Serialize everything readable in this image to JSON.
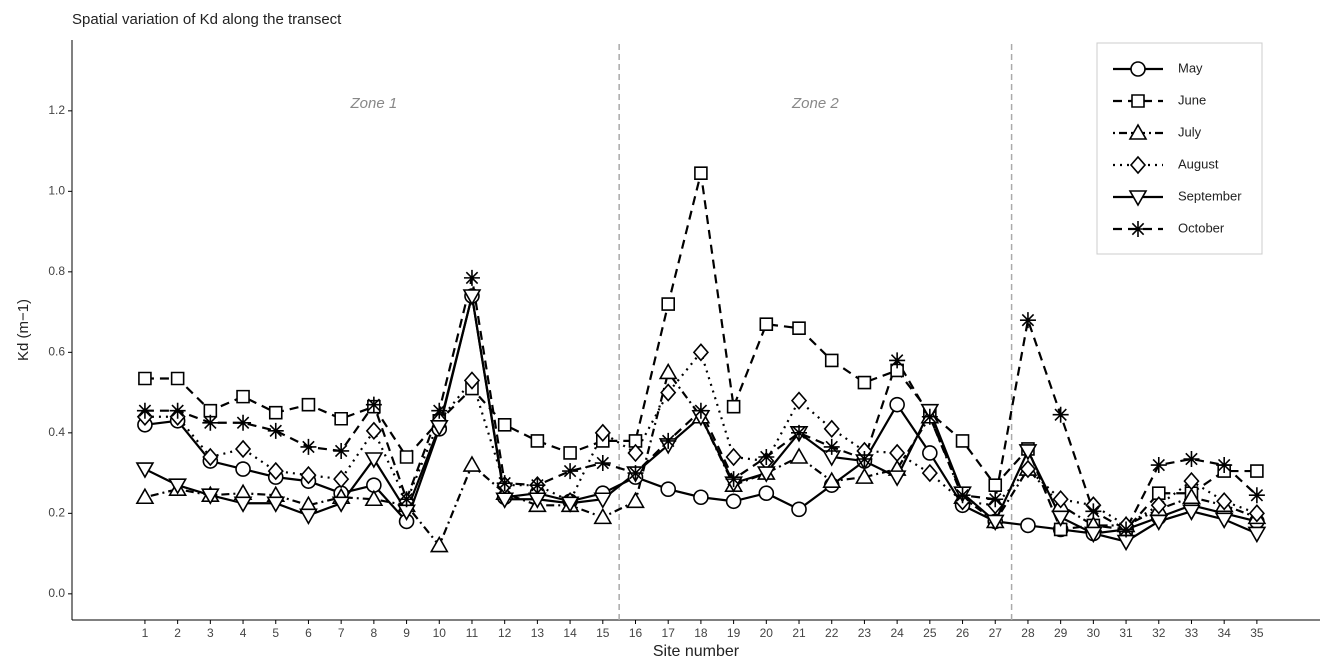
{
  "chart_data": {
    "type": "line",
    "title": "Spatial variation of Kd along the transect",
    "x_label": "Site number",
    "y_label": "Kd (m−1)",
    "annotations": [
      "Zone 1",
      "Zone 2"
    ],
    "vlines": [
      15.5,
      27.5
    ],
    "x": [
      1,
      2,
      3,
      4,
      5,
      6,
      7,
      8,
      9,
      10,
      11,
      12,
      13,
      14,
      15,
      16,
      17,
      18,
      19,
      20,
      21,
      22,
      23,
      24,
      25,
      26,
      27,
      28,
      29,
      30,
      31,
      32,
      33,
      34,
      35
    ],
    "xlim": [
      -1.23,
      36.93
    ],
    "xticks": [
      1,
      2,
      3,
      4,
      5,
      6,
      7,
      8,
      9,
      10,
      11,
      12,
      13,
      14,
      15,
      16,
      17,
      18,
      19,
      20,
      21,
      22,
      23,
      24,
      25,
      26,
      27,
      28,
      29,
      30,
      31,
      32,
      33,
      34,
      35
    ],
    "ylim": [
      -0.065,
      1.376
    ],
    "yticks": [
      {
        "value": 0,
        "label": "0.0"
      },
      0.2,
      0.4,
      0.6,
      0.8,
      {
        "value": 1,
        "label": "1.0"
      },
      1.2
    ],
    "grid": false,
    "legend": "top-right",
    "series": [
      {
        "name": "May",
        "color": "#000000",
        "marker": "circle",
        "dash": "solid",
        "values": [
          0.42,
          0.43,
          0.33,
          0.31,
          0.29,
          0.28,
          0.25,
          0.27,
          0.18,
          0.41,
          0.74,
          0.24,
          0.25,
          0.23,
          0.25,
          0.29,
          0.26,
          0.24,
          0.23,
          0.25,
          0.21,
          0.27,
          0.33,
          0.47,
          0.35,
          0.22,
          0.18,
          0.17,
          0.16,
          0.15,
          0.16,
          0.19,
          0.22,
          0.2,
          0.18
        ]
      },
      {
        "name": "June",
        "color": "#000000",
        "marker": "square",
        "dash": "dashed",
        "values": [
          0.535,
          0.535,
          0.455,
          0.49,
          0.45,
          0.47,
          0.435,
          0.465,
          0.34,
          0.43,
          0.51,
          0.42,
          0.38,
          0.35,
          0.38,
          0.38,
          0.72,
          1.045,
          0.465,
          0.67,
          0.66,
          0.58,
          0.525,
          0.555,
          0.45,
          0.38,
          0.27,
          0.36,
          0.16,
          0.17,
          0.16,
          0.25,
          0.25,
          0.305,
          0.305
        ]
      },
      {
        "name": "July",
        "color": "#000000",
        "marker": "triangle",
        "dash": "dotdash",
        "values": [
          0.24,
          0.26,
          0.245,
          0.25,
          0.245,
          0.22,
          0.24,
          0.235,
          0.22,
          0.12,
          0.32,
          0.25,
          0.22,
          0.22,
          0.19,
          0.23,
          0.55,
          0.44,
          0.27,
          0.3,
          0.34,
          0.28,
          0.29,
          0.31,
          0.44,
          0.24,
          0.18,
          0.31,
          0.22,
          0.17,
          0.17,
          0.21,
          0.24,
          0.22,
          0.19
        ]
      },
      {
        "name": "August",
        "color": "#000000",
        "marker": "diamond",
        "dash": "dotted",
        "values": [
          0.44,
          0.44,
          0.34,
          0.36,
          0.305,
          0.295,
          0.285,
          0.405,
          0.23,
          0.43,
          0.53,
          0.27,
          0.27,
          0.23,
          0.4,
          0.35,
          0.5,
          0.6,
          0.34,
          0.33,
          0.48,
          0.41,
          0.355,
          0.35,
          0.3,
          0.23,
          0.22,
          0.31,
          0.235,
          0.22,
          0.17,
          0.22,
          0.28,
          0.23,
          0.2
        ]
      },
      {
        "name": "September",
        "color": "#000000",
        "marker": "triangle-down",
        "dash": "solid",
        "values": [
          0.31,
          0.27,
          0.245,
          0.225,
          0.225,
          0.195,
          0.225,
          0.335,
          0.205,
          0.415,
          0.74,
          0.235,
          0.235,
          0.225,
          0.235,
          0.3,
          0.37,
          0.44,
          0.275,
          0.3,
          0.4,
          0.34,
          0.33,
          0.29,
          0.455,
          0.25,
          0.18,
          0.355,
          0.19,
          0.15,
          0.13,
          0.18,
          0.205,
          0.185,
          0.15
        ]
      },
      {
        "name": "October",
        "color": "#000000",
        "marker": "asterisk",
        "dash": "dashed",
        "values": [
          0.455,
          0.455,
          0.425,
          0.425,
          0.405,
          0.365,
          0.355,
          0.47,
          0.235,
          0.455,
          0.785,
          0.275,
          0.27,
          0.305,
          0.325,
          0.3,
          0.38,
          0.455,
          0.285,
          0.34,
          0.4,
          0.365,
          0.335,
          0.58,
          0.44,
          0.245,
          0.235,
          0.68,
          0.445,
          0.205,
          0.16,
          0.32,
          0.335,
          0.32,
          0.245
        ]
      }
    ]
  }
}
